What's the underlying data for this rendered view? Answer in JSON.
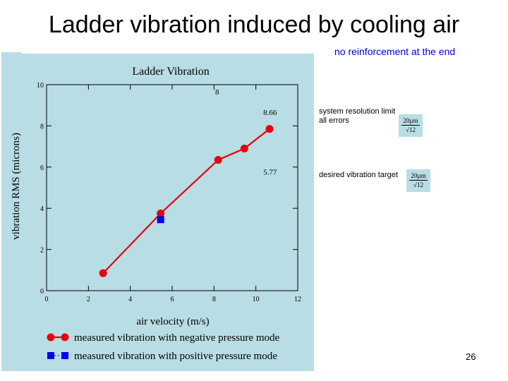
{
  "slide": {
    "title": "Ladder vibration induced by cooling air",
    "subtitle": "no reinforcement at the end",
    "page_number": "26"
  },
  "notes": {
    "resolution_line1": "system resolution limit",
    "resolution_line2": "all errors",
    "target": "desired vibration target",
    "formula1_num": "20µm",
    "formula1_den": "√12",
    "formula2_num": "20µm",
    "formula2_den": "√12"
  },
  "colors": {
    "panel_bg": "#b9dde4",
    "negative_series": "#e8000b",
    "positive_series": "#0000ee",
    "subtitle": "#0000cc"
  },
  "chart_data": {
    "type": "line",
    "title": "Ladder Vibration",
    "xlabel": "air velocity (m/s)",
    "ylabel": "vibration RMS (microns)",
    "xlim": [
      0,
      12
    ],
    "ylim": [
      0,
      10
    ],
    "xticks": [
      "0",
      "2",
      "4",
      "6",
      "8",
      "10",
      "12"
    ],
    "yticks": [
      "0",
      "2",
      "4",
      "6",
      "8",
      "10"
    ],
    "series": [
      {
        "name": "measured vibration with negative pressure mode",
        "marker": "circle",
        "color": "#e8000b",
        "points": [
          [
            2.7,
            0.85
          ],
          [
            5.45,
            3.75
          ],
          [
            8.2,
            6.35
          ],
          [
            9.45,
            6.9
          ],
          [
            10.65,
            7.85
          ]
        ]
      },
      {
        "name": "measured vibration with positive pressure mode",
        "marker": "square",
        "color": "#0000ee",
        "points": [
          [
            5.45,
            3.45
          ]
        ]
      }
    ],
    "annotations": [
      {
        "text": "8",
        "x": 8.15,
        "y": 9.65
      },
      {
        "text": "8.66",
        "x": 11.0,
        "y": 8.66
      },
      {
        "text": "5.77",
        "x": 11.0,
        "y": 5.77
      }
    ]
  }
}
